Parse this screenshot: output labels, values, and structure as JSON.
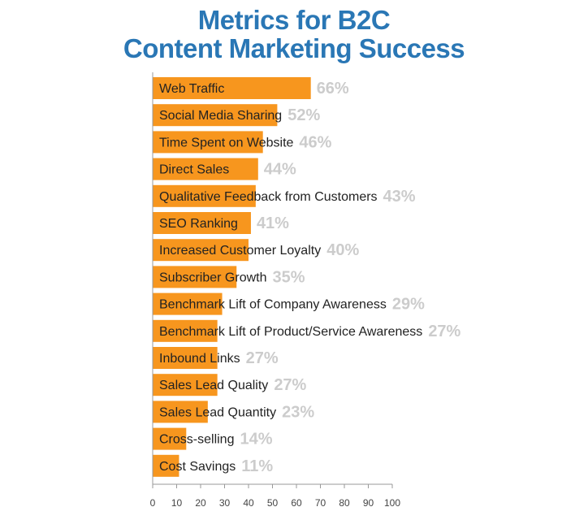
{
  "chart_data": {
    "type": "bar",
    "orientation": "horizontal",
    "title": "Metrics for B2C",
    "subtitle": "Content Marketing Success",
    "categories": [
      "Web Traffic",
      "Social Media Sharing",
      "Time Spent on Website",
      "Direct Sales",
      "Qualitative Feedback from Customers",
      "SEO Ranking",
      "Increased Customer Loyalty",
      "Subscriber Growth",
      "Benchmark Lift of Company Awareness",
      "Benchmark Lift of Product/Service Awareness",
      "Inbound Links",
      "Sales Lead Quality",
      "Sales Lead Quantity",
      "Cross-selling",
      "Cost Savings"
    ],
    "values": [
      66,
      52,
      46,
      44,
      43,
      41,
      40,
      35,
      29,
      27,
      27,
      27,
      23,
      14,
      11
    ],
    "value_labels": [
      "66%",
      "52%",
      "46%",
      "44%",
      "43%",
      "41%",
      "40%",
      "35%",
      "29%",
      "27%",
      "27%",
      "27%",
      "23%",
      "14%",
      "11%"
    ],
    "xlim": [
      0,
      100
    ],
    "xticks": [
      "0",
      "10",
      "20",
      "30",
      "40",
      "50",
      "60",
      "70",
      "80",
      "90",
      "100"
    ],
    "grid": false,
    "legend": "none",
    "colors": {
      "bar": "#f7961e",
      "title": "#2a77b5",
      "value_label": "#cccccc"
    }
  }
}
